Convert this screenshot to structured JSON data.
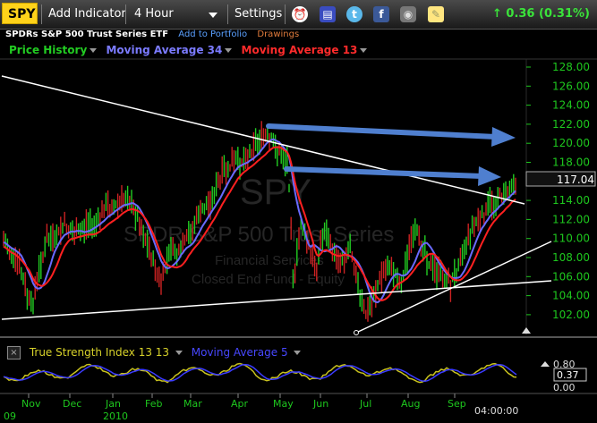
{
  "toolbar": {
    "symbol": "SPY",
    "add_indicator": "Add Indicator",
    "interval": "4 Hour",
    "settings": "Settings",
    "change": "↑ 0.36 (0.31%)",
    "icons": [
      "alarm-clock-icon",
      "book-icon",
      "twitter-icon",
      "facebook-icon",
      "camera-icon",
      "note-icon"
    ]
  },
  "subtitle": {
    "name": "SPDRs S&P 500 Trust Series ETF",
    "add_portfolio": "Add to Portfolio",
    "drawings": "Drawings"
  },
  "legend": {
    "price_history": "Price History",
    "ma34": "Moving Average 34",
    "ma13": "Moving Average 13"
  },
  "watermark": {
    "symbol": "SPY",
    "name": "SPDR S&P 500 Trust Series",
    "sector": "Financial Services",
    "industry": "Closed End Fund - Equity"
  },
  "price_axis": [
    "128.00",
    "126.00",
    "124.00",
    "122.00",
    "120.00",
    "118.00",
    "116.00",
    "114.00",
    "112.00",
    "110.00",
    "108.00",
    "106.00",
    "104.00",
    "102.00"
  ],
  "last_price": "117.04",
  "lower": {
    "tsi_label": "True Strength Index 13 13",
    "ma_label": "Moving Average 5",
    "axis_top": "0.80",
    "value": "0.37",
    "axis_bottom": "0.00"
  },
  "time_axis": {
    "months": [
      "Nov",
      "Dec",
      "Jan",
      "Feb",
      "Mar",
      "Apr",
      "May",
      "Jun",
      "Jul",
      "Aug",
      "Sep"
    ],
    "year_left": "09",
    "year_2010": "2010",
    "time_right": "04:00:00"
  },
  "colors": {
    "price": "#22cc22",
    "ma34": "#6a6aff",
    "ma13": "#ff2020",
    "axis_text": "#1ec81e",
    "annotation_arrow": "#4f7fcf",
    "trendline": "#ffffff"
  },
  "chart_data": {
    "type": "line",
    "series": [
      {
        "name": "Price History"
      },
      {
        "name": "Moving Average 34"
      },
      {
        "name": "Moving Average 13"
      }
    ],
    "x": [
      "Nov",
      "Dec",
      "Jan",
      "Feb",
      "Mar",
      "Apr",
      "May",
      "Jun",
      "Jul",
      "Aug",
      "Sep"
    ],
    "ylim": [
      101,
      129
    ],
    "last_value": 117.04,
    "lower_indicator": {
      "name": "True Strength Index 13 13",
      "ma": "Moving Average 5",
      "ylim": [
        0,
        0.8
      ],
      "last_value": 0.37
    }
  }
}
